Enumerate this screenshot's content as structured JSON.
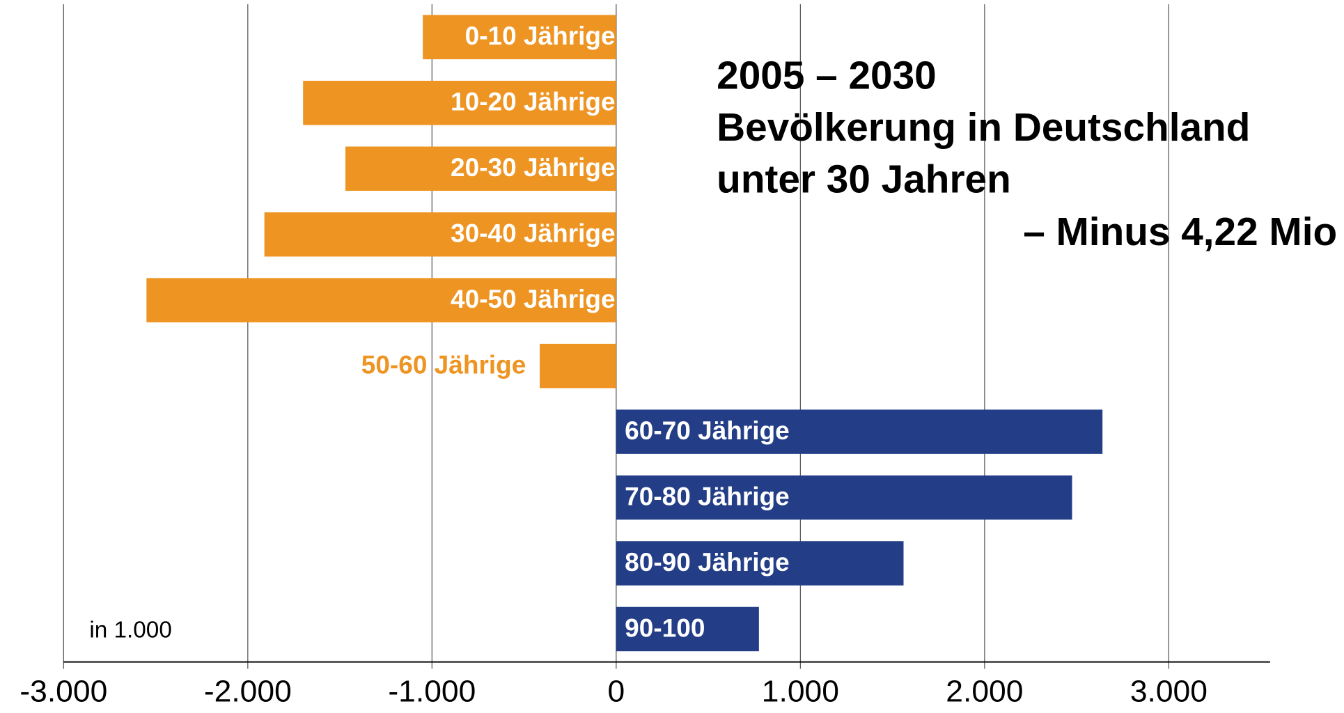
{
  "chart_data": {
    "type": "bar",
    "orientation": "horizontal",
    "title": [
      "2005 – 2030",
      "Bevölkerung in Deutschland",
      "unter 30 Jahren",
      "– Minus 4,22 Mio"
    ],
    "annotation": "in 1.000",
    "categories": [
      "0-10 Jährige",
      "10-20 Jährige",
      "20-30 Jährige",
      "30-40 Jährige",
      "40-50 Jährige",
      "50-60 Jährige",
      "60-70 Jährige",
      "70-80 Jährige",
      "80-90 Jährige",
      "90-100"
    ],
    "values": [
      -1050,
      -1700,
      -1470,
      -1910,
      -2550,
      -415,
      2640,
      2475,
      1560,
      775
    ],
    "negative_color": "#ee9422",
    "positive_color": "#233e87",
    "xlim": [
      -3000,
      3550
    ],
    "xticks": [
      {
        "value": -3000,
        "label": "-3.000"
      },
      {
        "value": -2000,
        "label": "-2.000"
      },
      {
        "value": -1000,
        "label": "-1.000"
      },
      0,
      {
        "value": 1000,
        "label": "1.000"
      },
      {
        "value": 2000,
        "label": "2.000"
      },
      {
        "value": 3000,
        "label": "3.000"
      }
    ],
    "grid": true
  }
}
